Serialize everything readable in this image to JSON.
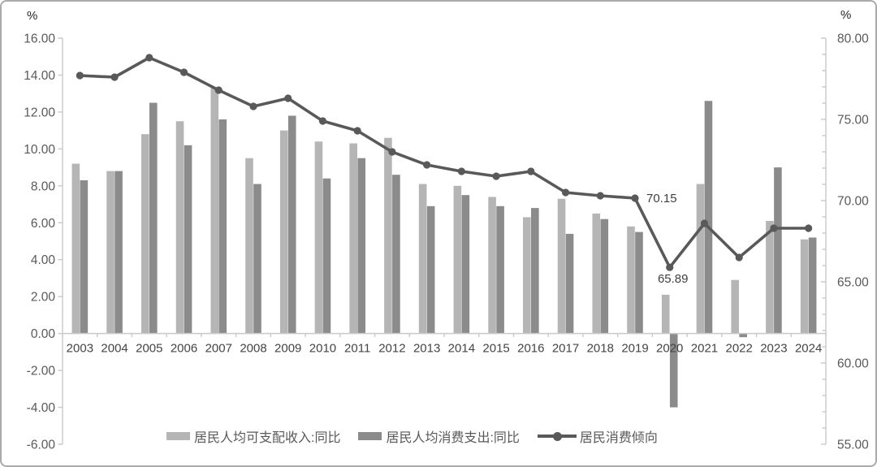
{
  "chart_data": {
    "type": "combo-bar-line",
    "title": "",
    "gridlines": false,
    "legend_position": "bottom",
    "categories": [
      "2003",
      "2004",
      "2005",
      "2006",
      "2007",
      "2008",
      "2009",
      "2010",
      "2011",
      "2012",
      "2013",
      "2014",
      "2015",
      "2016",
      "2017",
      "2018",
      "2019",
      "2020",
      "2021",
      "2022",
      "2023",
      "2024"
    ],
    "series": [
      {
        "name": "居民人均可支配收入:同比",
        "type": "bar",
        "axis": "left",
        "color": "#b5b5b5",
        "values": [
          9.2,
          8.8,
          10.8,
          11.5,
          13.3,
          9.5,
          11.0,
          10.4,
          10.3,
          10.6,
          8.1,
          8.0,
          7.4,
          6.3,
          7.3,
          6.5,
          5.8,
          2.1,
          8.1,
          2.9,
          6.1,
          5.1
        ]
      },
      {
        "name": "居民人均消费支出:同比",
        "type": "bar",
        "axis": "left",
        "color": "#8b8b8b",
        "values": [
          8.3,
          8.8,
          12.5,
          10.2,
          11.6,
          8.1,
          11.8,
          8.4,
          9.5,
          8.6,
          6.9,
          7.5,
          6.9,
          6.8,
          5.4,
          6.2,
          5.5,
          -4.0,
          12.6,
          -0.2,
          9.0,
          5.2
        ]
      },
      {
        "name": "居民消费倾向",
        "type": "line",
        "axis": "right",
        "color": "#595959",
        "values": [
          77.7,
          77.6,
          78.8,
          77.9,
          76.8,
          75.8,
          76.3,
          74.9,
          74.3,
          73.0,
          72.2,
          71.8,
          71.5,
          71.8,
          70.5,
          70.3,
          70.15,
          65.89,
          68.6,
          66.5,
          68.3,
          68.3
        ]
      }
    ],
    "left_axis": {
      "unit": "%",
      "min": -6,
      "max": 16,
      "step": 2,
      "tick_labels": [
        "16.00",
        "14.00",
        "12.00",
        "10.00",
        "8.00",
        "6.00",
        "4.00",
        "2.00",
        "0.00",
        "-2.00",
        "-4.00",
        "-6.00"
      ]
    },
    "right_axis": {
      "unit": "%",
      "min": 55,
      "max": 80,
      "step": 5,
      "minor_step": 1,
      "tick_labels": [
        "80.00",
        "75.00",
        "70.00",
        "65.00",
        "60.00",
        "55.00"
      ]
    },
    "annotations": [
      {
        "text": "70.15",
        "category": "2019",
        "series": "居民消费倾向",
        "position": "right"
      },
      {
        "text": "65.89",
        "category": "2020",
        "series": "居民消费倾向",
        "position": "below"
      }
    ]
  }
}
